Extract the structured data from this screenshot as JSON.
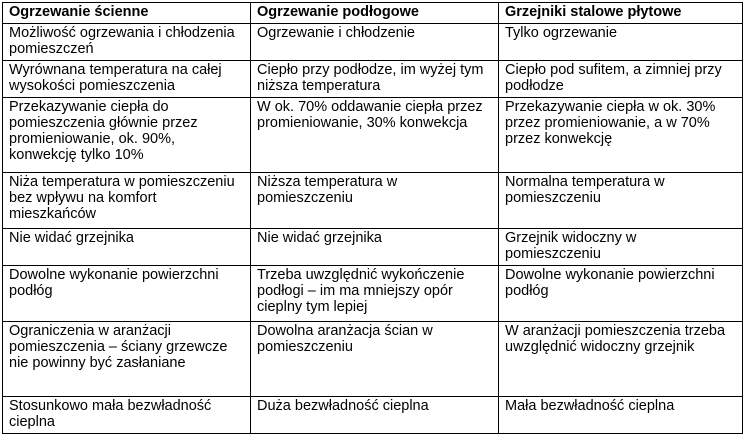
{
  "table": {
    "headers": [
      "Ogrzewanie ścienne",
      "Ogrzewanie podłogowe",
      "Grzejniki stalowe płytowe"
    ],
    "rows": [
      [
        "Możliwość ogrzewania i chłodzenia pomieszczeń",
        "Ogrzewanie i chłodzenie",
        "Tylko ogrzewanie"
      ],
      [
        "Wyrównana temperatura na całej wysokości pomieszczenia",
        "Ciepło przy podłodze, im wyżej tym niższa temperatura",
        "Ciepło pod sufitem, a zimniej przy podłodze"
      ],
      [
        "Przekazywanie ciepła do pomieszczenia głównie przez promieniowanie, ok. 90%, konwekcję tylko 10%",
        "W ok. 70% oddawanie ciepła przez promieniowanie, 30% konwekcja",
        "Przekazywanie ciepła w ok. 30% przez promieniowanie, a w 70% przez konwekcję"
      ],
      [
        "Niża temperatura w pomieszczeniu bez wpływu na komfort mieszkańców",
        "Niższa temperatura w pomieszczeniu",
        "Normalna temperatura w pomieszczeniu"
      ],
      [
        "Nie widać grzejnika",
        "Nie widać grzejnika",
        "Grzejnik widoczny w pomieszczeniu"
      ],
      [
        "Dowolne wykonanie powierzchni podłóg",
        "Trzeba uwzględnić wykończenie podłogi – im ma mniejszy opór cieplny tym lepiej",
        "Dowolne wykonanie powierzchni podłóg"
      ],
      [
        "Ograniczenia w aranżacji pomieszczenia – ściany grzewcze nie powinny być zasłaniane",
        "Dowolna aranżacja ścian w pomieszczeniu",
        "W aranżacji pomieszczenia trzeba uwzględnić widoczny grzejnik"
      ],
      [
        "Stosunkowo mała bezwładność cieplna",
        "Duża bezwładność cieplna",
        "Mała bezwładność cieplna"
      ]
    ]
  }
}
